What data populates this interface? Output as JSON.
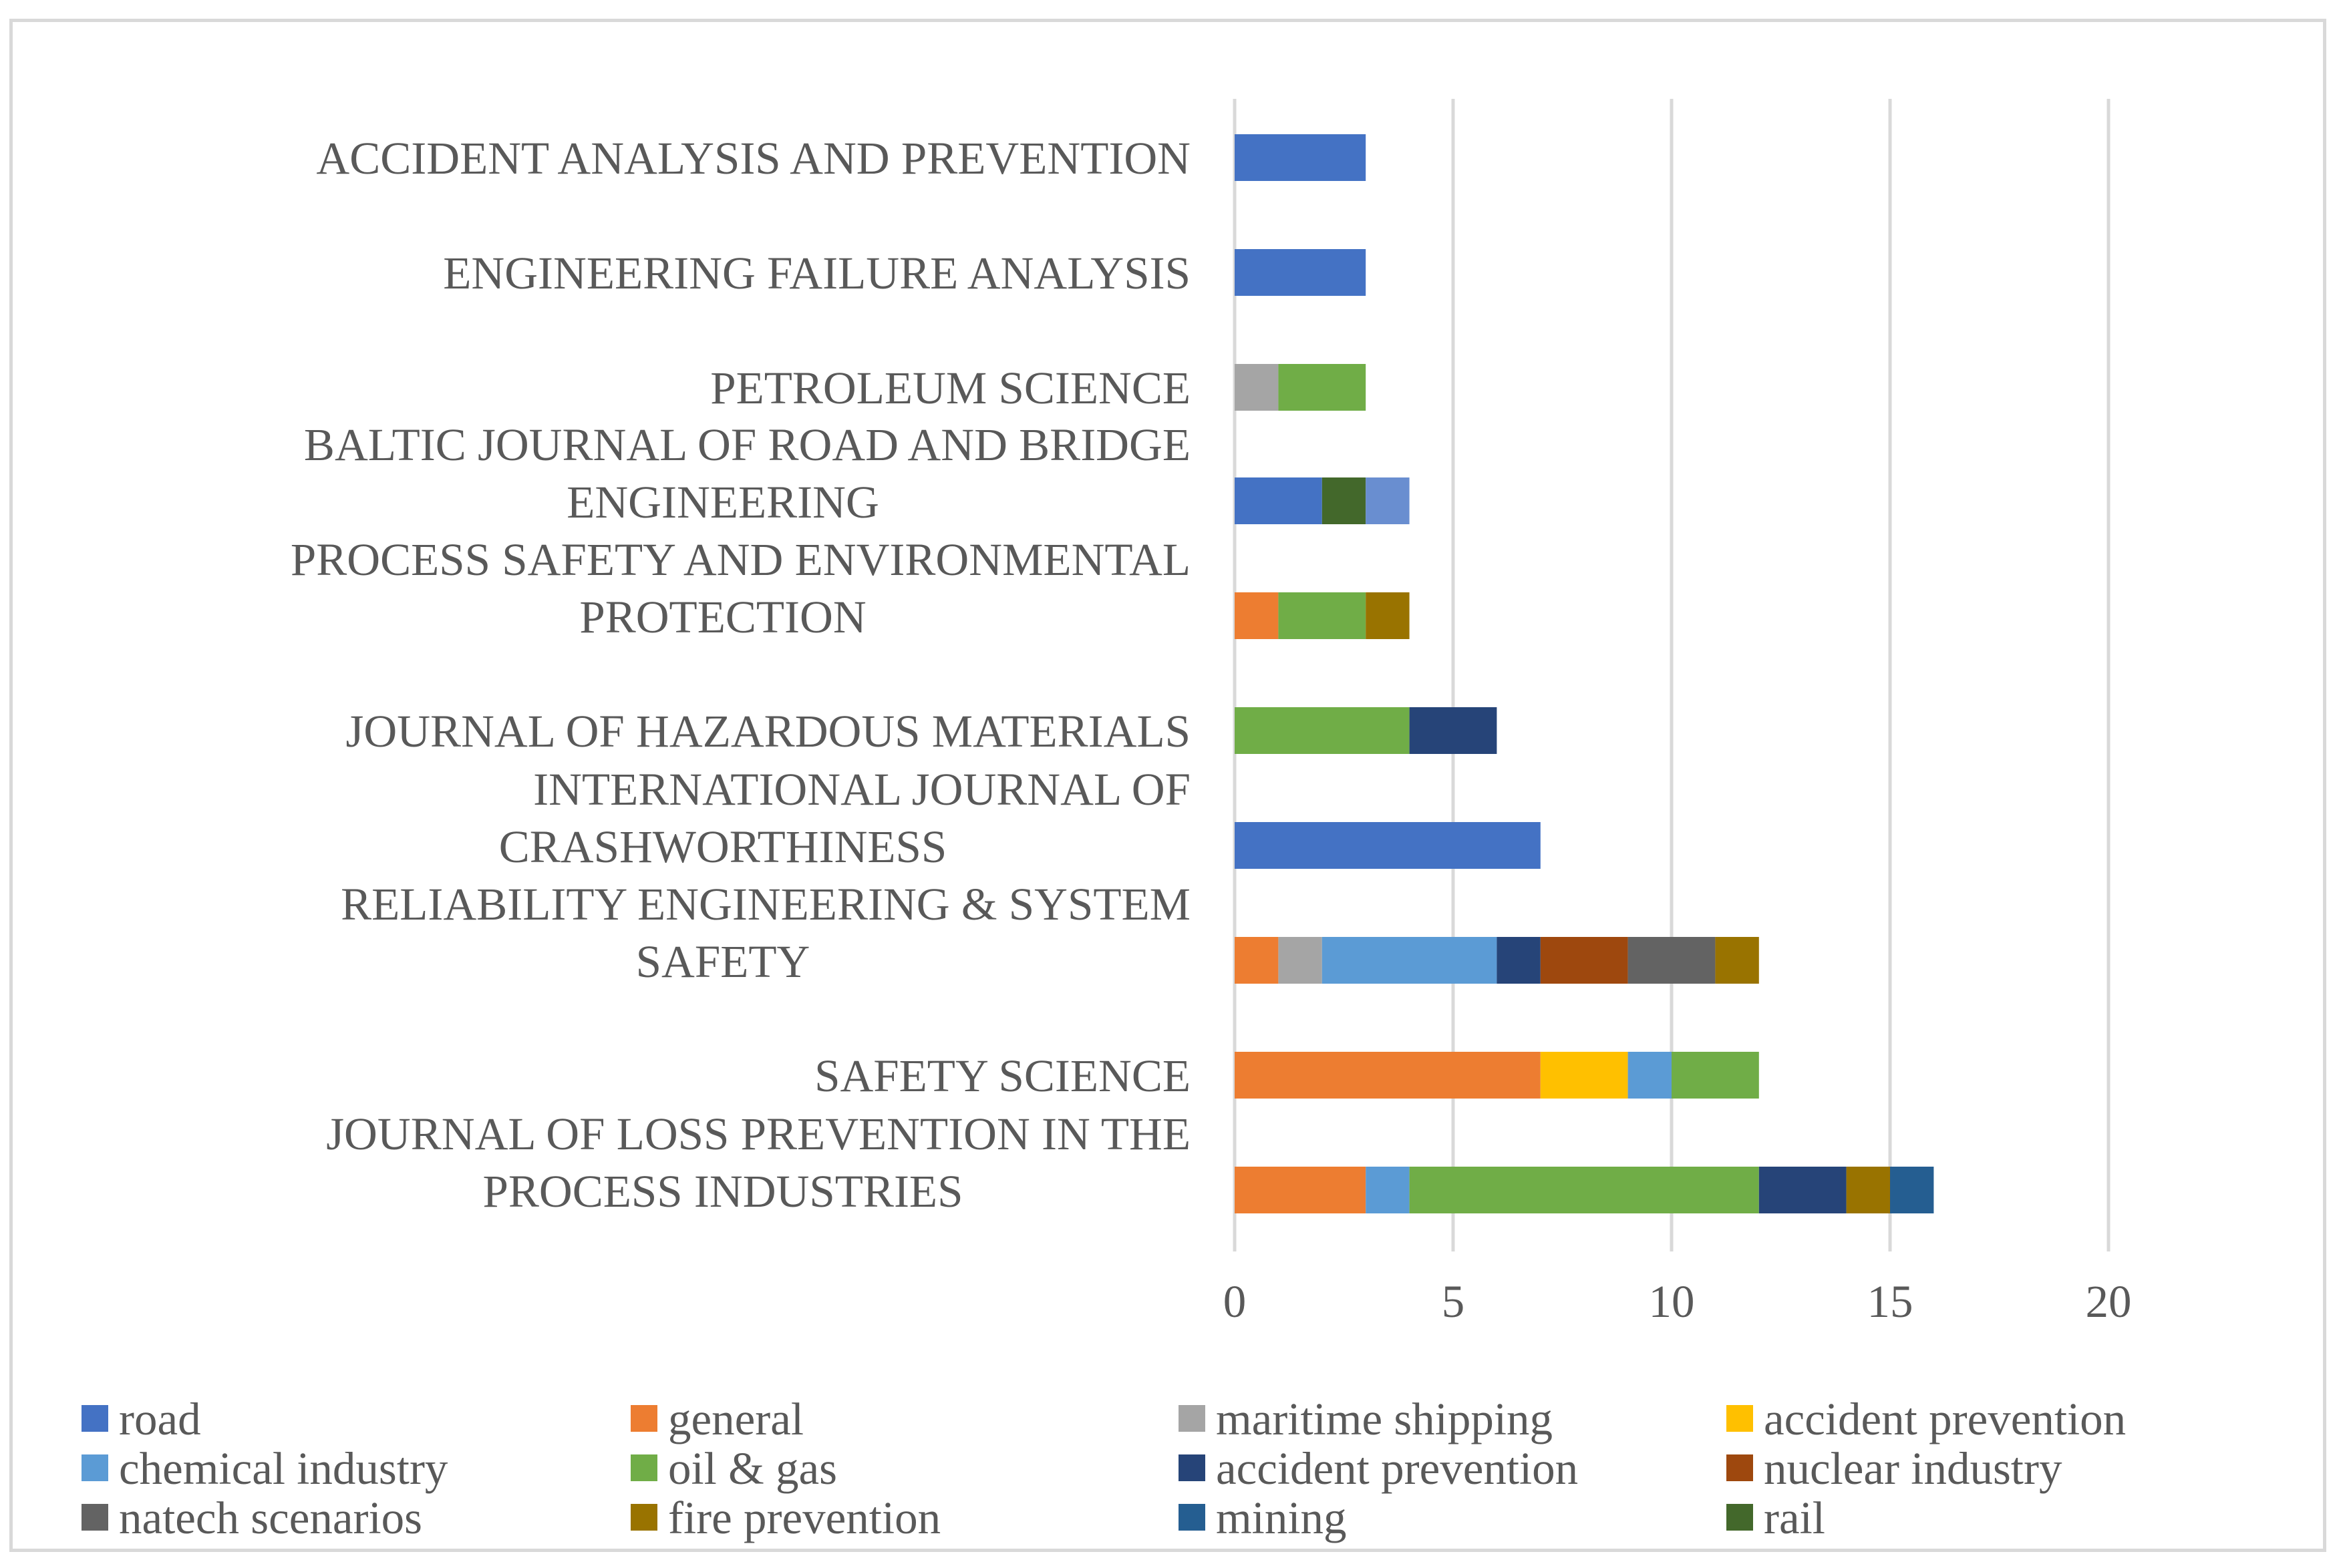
{
  "chart_data": {
    "type": "bar",
    "orientation": "horizontal",
    "stacked": true,
    "title": "",
    "xlabel": "",
    "ylabel": "",
    "xlim": [
      0,
      20
    ],
    "x_ticks": [
      0,
      5,
      10,
      15,
      20
    ],
    "grid": true,
    "legend_position": "bottom",
    "categories": [
      {
        "name": "accident-analysis",
        "lines": [
          "ACCIDENT ANALYSIS AND PREVENTION"
        ]
      },
      {
        "name": "engineering-failure",
        "lines": [
          "ENGINEERING FAILURE ANALYSIS"
        ]
      },
      {
        "name": "petroleum-science",
        "lines": [
          "PETROLEUM SCIENCE"
        ]
      },
      {
        "name": "baltic-journal",
        "lines": [
          "BALTIC JOURNAL OF ROAD AND BRIDGE",
          "ENGINEERING"
        ]
      },
      {
        "name": "process-safety",
        "lines": [
          "PROCESS SAFETY AND ENVIRONMENTAL",
          "PROTECTION"
        ]
      },
      {
        "name": "hazardous-materials",
        "lines": [
          "JOURNAL OF HAZARDOUS MATERIALS"
        ]
      },
      {
        "name": "crashworthiness",
        "lines": [
          "INTERNATIONAL JOURNAL OF",
          "CRASHWORTHINESS"
        ]
      },
      {
        "name": "reliability-engineering",
        "lines": [
          "RELIABILITY ENGINEERING & SYSTEM",
          "SAFETY"
        ]
      },
      {
        "name": "safety-science",
        "lines": [
          "SAFETY SCIENCE"
        ]
      },
      {
        "name": "loss-prevention",
        "lines": [
          "JOURNAL OF LOSS PREVENTION IN THE",
          "PROCESS INDUSTRIES"
        ]
      }
    ],
    "series": [
      {
        "name": "road",
        "color": "#4472C4",
        "values": [
          3,
          3,
          0,
          2,
          0,
          0,
          7,
          0,
          0,
          0
        ]
      },
      {
        "name": "general",
        "color": "#ED7D31",
        "values": [
          0,
          0,
          0,
          0,
          1,
          0,
          0,
          1,
          7,
          3
        ]
      },
      {
        "name": "maritime shipping",
        "color": "#A5A5A5",
        "values": [
          0,
          0,
          1,
          0,
          0,
          0,
          0,
          1,
          0,
          0
        ]
      },
      {
        "name": "accident prevention",
        "color": "#FFC000",
        "values": [
          0,
          0,
          0,
          0,
          0,
          0,
          0,
          0,
          2,
          0
        ]
      },
      {
        "name": "chemical industry",
        "color": "#5B9BD5",
        "values": [
          0,
          0,
          0,
          0,
          0,
          0,
          0,
          4,
          1,
          1
        ]
      },
      {
        "name": "oil & gas",
        "color": "#70AD47",
        "values": [
          0,
          0,
          2,
          0,
          2,
          4,
          0,
          0,
          2,
          8
        ]
      },
      {
        "name": "accident prevention",
        "color": "#264478",
        "values": [
          0,
          0,
          0,
          0,
          0,
          2,
          0,
          1,
          0,
          2
        ]
      },
      {
        "name": "nuclear industry",
        "color": "#9E480E",
        "values": [
          0,
          0,
          0,
          0,
          0,
          0,
          0,
          2,
          0,
          0
        ]
      },
      {
        "name": "natech scenarios",
        "color": "#636363",
        "values": [
          0,
          0,
          0,
          0,
          0,
          0,
          0,
          2,
          0,
          0
        ]
      },
      {
        "name": "fire prevention",
        "color": "#997300",
        "values": [
          0,
          0,
          0,
          0,
          1,
          0,
          0,
          1,
          0,
          1
        ]
      },
      {
        "name": "mining",
        "color": "#255E91",
        "values": [
          0,
          0,
          0,
          0,
          0,
          0,
          0,
          0,
          0,
          1
        ]
      },
      {
        "name": "rail",
        "color": "#43682B",
        "values": [
          0,
          0,
          0,
          1,
          0,
          0,
          0,
          0,
          0,
          0
        ]
      },
      {
        "name": "",
        "color": "#698ED0",
        "values": [
          0,
          0,
          0,
          1,
          0,
          0,
          0,
          0,
          0,
          0
        ]
      }
    ]
  }
}
